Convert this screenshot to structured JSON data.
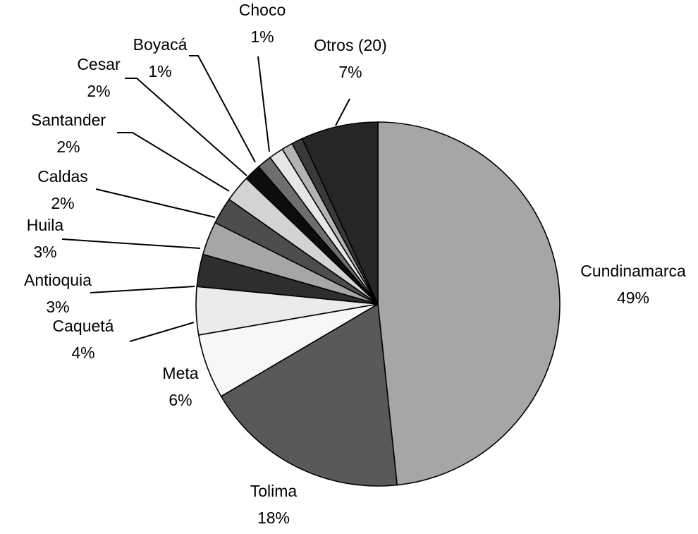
{
  "chart_data": {
    "type": "pie",
    "title": "",
    "slices": [
      {
        "name": "Cundinamarca",
        "pct_label": "49%",
        "value": 48.8,
        "color": "#a6a6a6"
      },
      {
        "name": "Tolima",
        "pct_label": "18%",
        "value": 18.4,
        "color": "#595959"
      },
      {
        "name": "Meta",
        "pct_label": "6%",
        "value": 5.8,
        "color": "#f7f7f7"
      },
      {
        "name": "Caquetá",
        "pct_label": "4%",
        "value": 4.3,
        "color": "#ebebeb"
      },
      {
        "name": "Antioquia",
        "pct_label": "3%",
        "value": 2.9,
        "color": "#2e2e2e"
      },
      {
        "name": "Huila",
        "pct_label": "3%",
        "value": 3.0,
        "color": "#a6a6a6"
      },
      {
        "name": "Caldas",
        "pct_label": "2%",
        "value": 2.4,
        "color": "#4d4d4d"
      },
      {
        "name": "Santander",
        "pct_label": "2%",
        "value": 2.4,
        "color": "#d3d3d3"
      },
      {
        "name": "Cesar",
        "pct_label": "2%",
        "value": 1.5,
        "color": "#0d0d0d"
      },
      {
        "name": "Boyacá",
        "pct_label": "1%",
        "value": 1.3,
        "color": "#6e6e6e"
      },
      {
        "name": "Choco",
        "pct_label": "1%",
        "value": 1.3,
        "color": "#e6e6e6"
      },
      {
        "name": "",
        "pct_label": "",
        "value": 1.0,
        "color": "#b3b3b3"
      },
      {
        "name": "",
        "pct_label": "",
        "value": 1.0,
        "color": "#3a3a3a"
      },
      {
        "name": "Otros (20)",
        "pct_label": "7%",
        "value": 6.9,
        "color": "#262626"
      }
    ]
  }
}
